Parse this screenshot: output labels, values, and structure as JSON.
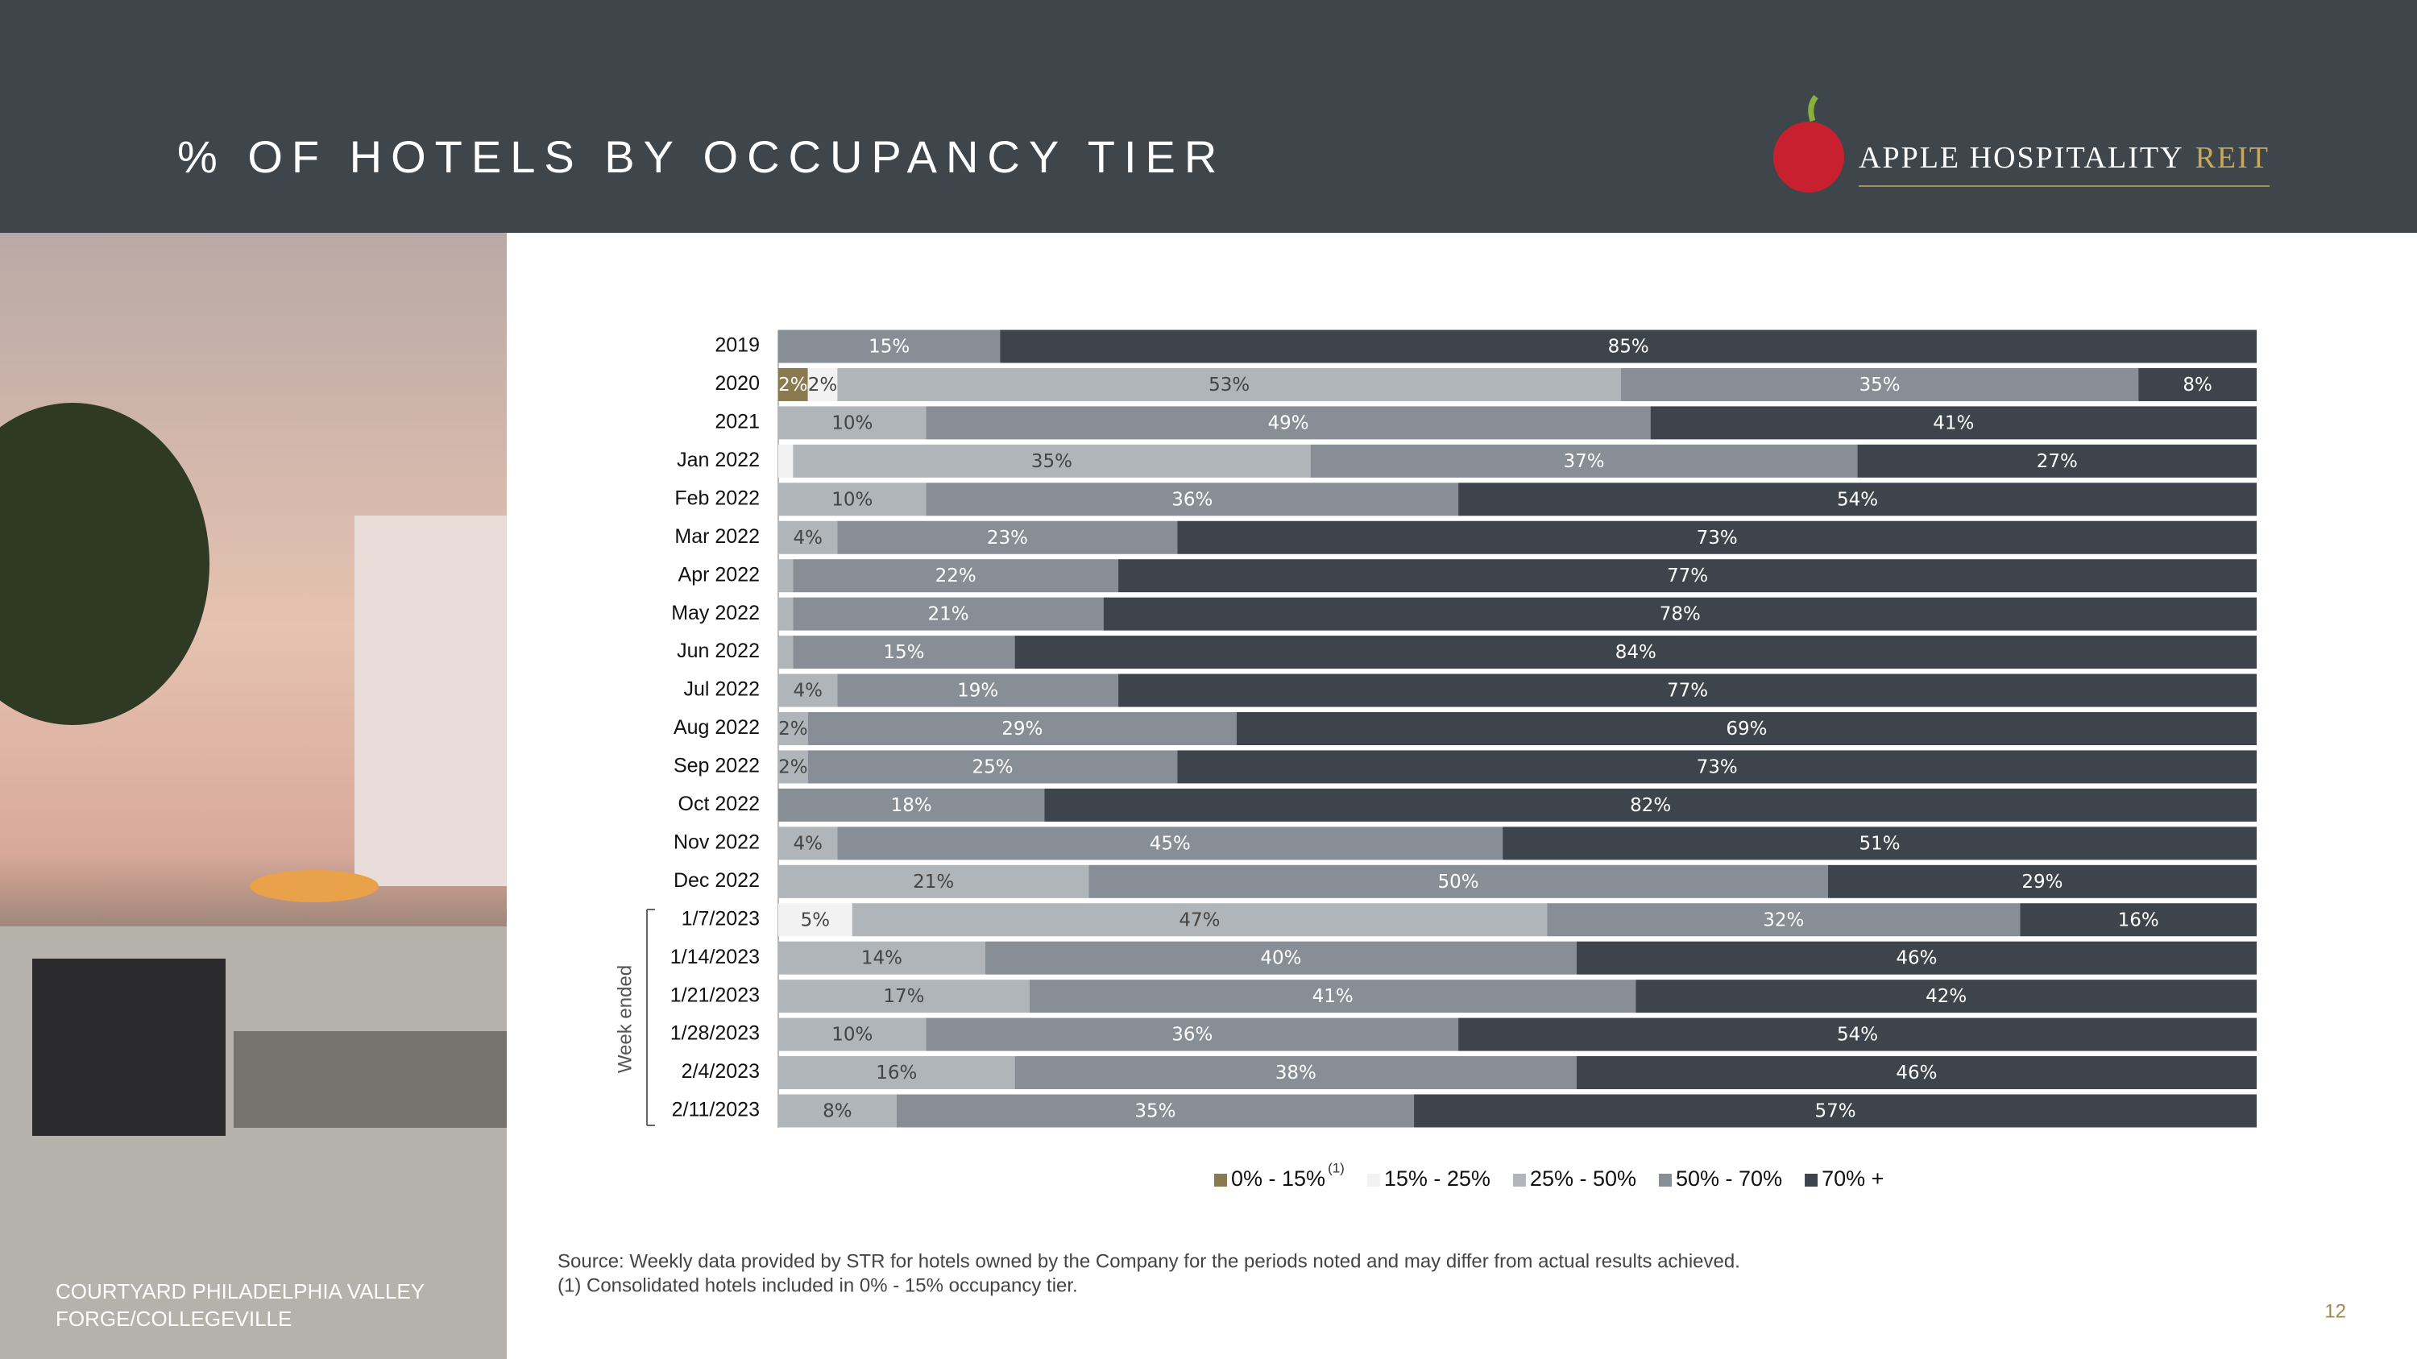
{
  "chart_data": {
    "type": "stacked_barh",
    "title": "% OF HOTELS BY OCCUPANCY TIER",
    "categories": [
      "2019",
      "2020",
      "2021",
      "Jan 2022",
      "Feb 2022",
      "Mar 2022",
      "Apr 2022",
      "May 2022",
      "Jun 2022",
      "Jul 2022",
      "Aug 2022",
      "Sep 2022",
      "Oct 2022",
      "Nov 2022",
      "Dec 2022",
      "1/7/2023",
      "1/14/2023",
      "1/21/2023",
      "1/28/2023",
      "2/4/2023",
      "2/11/2023"
    ],
    "xlim": [
      0,
      100
    ],
    "group_label": "Week ended",
    "legend_note": "(1)",
    "series": [
      {
        "name": "0% - 15%",
        "color": "#8c7a4f",
        "values": [
          0,
          2,
          0,
          0,
          0,
          0,
          0,
          0,
          0,
          0,
          0,
          0,
          0,
          0,
          0,
          0,
          0,
          0,
          0,
          0,
          0
        ],
        "value_labels": [
          null,
          "2%",
          null,
          null,
          null,
          null,
          null,
          null,
          null,
          null,
          null,
          null,
          null,
          null,
          null,
          null,
          null,
          null,
          null,
          null,
          null
        ]
      },
      {
        "name": "15% - 25%",
        "color": "#f2f2f2",
        "values": [
          0,
          2,
          0,
          1,
          0,
          0,
          0,
          0,
          0,
          0,
          0,
          0,
          0,
          0,
          0,
          5,
          0,
          0,
          0,
          0,
          0
        ],
        "value_labels": [
          null,
          "2%",
          null,
          null,
          null,
          null,
          null,
          null,
          null,
          null,
          null,
          null,
          null,
          null,
          null,
          "5%",
          null,
          null,
          null,
          null,
          null
        ]
      },
      {
        "name": "25% - 50%",
        "color": "#b0b5ba",
        "values": [
          0,
          53,
          10,
          35,
          10,
          4,
          1,
          1,
          1,
          4,
          2,
          2,
          0,
          4,
          21,
          47,
          14,
          17,
          10,
          16,
          8
        ],
        "value_labels": [
          null,
          "53%",
          "10%",
          "35%",
          "10%",
          "4%",
          null,
          null,
          null,
          "4%",
          "2%",
          "2%",
          null,
          "4%",
          "21%",
          "47%",
          "14%",
          "17%",
          "10%",
          "16%",
          "8%"
        ]
      },
      {
        "name": "50% - 70%",
        "color": "#878e96",
        "values": [
          15,
          35,
          49,
          37,
          36,
          23,
          22,
          21,
          15,
          19,
          29,
          25,
          18,
          45,
          50,
          32,
          40,
          41,
          36,
          38,
          35
        ],
        "value_labels": [
          "15%",
          "35%",
          "49%",
          "37%",
          "36%",
          "23%",
          "22%",
          "21%",
          "15%",
          "19%",
          "29%",
          "25%",
          "18%",
          "45%",
          "50%",
          "32%",
          "40%",
          "41%",
          "36%",
          "38%",
          "35%"
        ]
      },
      {
        "name": "70% +",
        "color": "#3e444b",
        "values": [
          85,
          8,
          41,
          27,
          54,
          73,
          77,
          78,
          84,
          77,
          69,
          73,
          82,
          51,
          29,
          16,
          46,
          42,
          54,
          46,
          57
        ],
        "value_labels": [
          "85%",
          "8%",
          "41%",
          "27%",
          "54%",
          "73%",
          "77%",
          "78%",
          "84%",
          "77%",
          "69%",
          "73%",
          "82%",
          "51%",
          "29%",
          "16%",
          "46%",
          "42%",
          "54%",
          "46%",
          "57%"
        ]
      }
    ]
  },
  "logo": {
    "name": "APPLE HOSPITALITY",
    "suffix": "REIT"
  },
  "photo_caption": [
    "COURTYARD PHILADELPHIA VALLEY",
    "FORGE/COLLEGEVILLE"
  ],
  "source": "Source:  Weekly data provided by STR for hotels owned by the Company for the periods noted and may differ from actual results achieved.",
  "footnote": "(1)    Consolidated hotels included in 0% - 15% occupancy tier.",
  "page_number": "12"
}
